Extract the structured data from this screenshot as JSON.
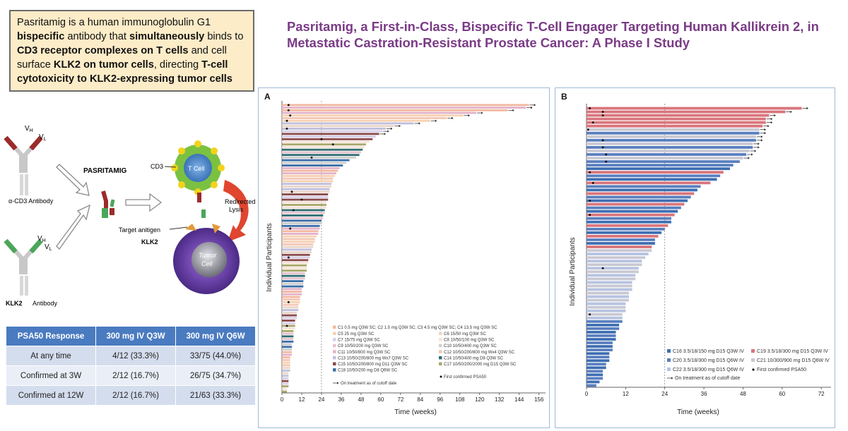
{
  "callout": {
    "t1": "Pasritamig is a human immunoglobulin G1 ",
    "b1": "bispecific",
    "t2": " antibody that ",
    "b2": "simultaneously",
    "t3": " binds to ",
    "b3": "CD3 receptor complexes on T cells",
    "t4": " and cell surface ",
    "b4": "KLK2 on tumor cells",
    "t5": ", directing ",
    "b5": "T-cell cytotoxicity to KLK2-expressing tumor cells"
  },
  "slide_title": "Pasritamig, a First-in-Class, Bispecific T-Cell Engager Targeting Human Kallikrein 2, in Metastatic Castration-Resistant Prostate Cancer: A Phase I Study",
  "diagram": {
    "vh": "V",
    "vh_sub": "H",
    "vl": "V",
    "vl_sub": "L",
    "cd3_antibody": "α-CD3 Antibody",
    "pasritamig": "PASRITAMIG",
    "cd3": "CD3",
    "t_cell": "T Cell",
    "redirected": "Redirected",
    "lysis": "Lysis",
    "target_antigen": "Target anitigen",
    "klk2_center": "KLK2",
    "tumor": "Tumor",
    "cell": "Cell",
    "klk2": "KLK2",
    "antibody": "Antibody"
  },
  "psa_table": {
    "headers": [
      "PSA50 Response",
      "300 mg IV Q3W",
      "300 mg IV Q6W"
    ],
    "rows": [
      [
        "At any time",
        "4/12 (33.3%)",
        "33/75 (44.0%)"
      ],
      [
        "Confirmed at 3W",
        "2/12 (16.7%)",
        "26/75 (34.7%)"
      ],
      [
        "Confirmed at 12W",
        "2/12 (16.7%)",
        "21/63 (33.3%)"
      ]
    ]
  },
  "chart_data": [
    {
      "type": "bar",
      "orientation": "horizontal",
      "panel": "A",
      "xlabel": "Time (weeks)",
      "ylabel": "Individual Participants",
      "xlim": [
        0,
        160
      ],
      "xticks": [
        0,
        12,
        24,
        36,
        48,
        60,
        72,
        84,
        96,
        108,
        120,
        132,
        144,
        156
      ],
      "reference_line_x": 24,
      "legend_position": "bottom-right",
      "series": [
        {
          "name": "C1 0.5 mg Q3W SC; C2 1.5 mg Q3W SC; C3 4.5 mg Q3W SC; C4 13.5 mg Q3W SC",
          "color": "#f2b8a0"
        },
        {
          "name": "C5 25 mg Q3W SC",
          "color": "#f6d2b2"
        },
        {
          "name": "C6 15/50 mg Q3W SC",
          "color": "#ead6c8"
        },
        {
          "name": "C7 15/75 mg Q3W SC",
          "color": "#d8d0e8"
        },
        {
          "name": "C8 10/50/100 mg Q3W SC",
          "color": "#f5e3d8"
        },
        {
          "name": "C9 10/50/200 mg Q3W SC",
          "color": "#e6c3cf"
        },
        {
          "name": "C10 10/50/400 mg Q3W SC",
          "color": "#cfcfcf"
        },
        {
          "name": "C11 10/50/800 mg Q3W SC",
          "color": "#e3b3c9"
        },
        {
          "name": "C12 10/50/200/800 mg Wx4 Q3W SC",
          "color": "#f2c7b5"
        },
        {
          "name": "C13 10/50/200/800 mg Wx7 Q3W SC",
          "color": "#bfbfdf"
        },
        {
          "name": "C14 10/50/400 mg D8 Q3W SC",
          "color": "#2f6f73"
        },
        {
          "name": "C15 10/50/200/800 mg D11 Q3W SC",
          "color": "#8a4a4a"
        },
        {
          "name": "C17 10/50/200/2000 mg D15 Q3W SC",
          "color": "#a9a86a"
        },
        {
          "name": "C18 10/50/200 mg D8 Q6W SC",
          "color": "#3a6fa8"
        }
      ],
      "markers": {
        "first_confirmed_psa50": "First confirmed PSA50",
        "on_treatment": "On treatment as of cutoff date"
      },
      "durations_weeks": [
        150,
        148,
        137,
        118,
        110,
        100,
        90,
        80,
        68,
        63,
        61,
        59,
        57,
        55,
        53,
        51,
        50,
        49,
        48,
        47,
        45,
        41,
        39,
        37,
        35,
        34,
        33,
        32,
        31,
        31,
        30,
        30,
        29,
        29,
        28,
        28,
        28,
        27,
        27,
        27,
        26,
        26,
        25,
        25,
        24,
        24,
        23,
        23,
        22,
        22,
        21,
        20,
        20,
        19,
        19,
        18,
        18,
        17,
        17,
        16,
        16,
        15,
        15,
        15,
        14,
        14,
        14,
        13,
        13,
        13,
        12,
        12,
        12,
        11,
        11,
        11,
        10,
        10,
        10,
        9,
        9,
        9,
        8,
        8,
        8,
        8,
        7,
        7,
        7,
        7,
        7,
        6,
        6,
        6,
        6,
        6,
        5,
        5,
        5,
        5,
        5,
        5,
        4,
        4,
        4,
        4,
        4,
        4,
        3,
        3
      ],
      "first_psa50_weeks": [
        {
          "p": 0,
          "w": 4
        },
        {
          "p": 2,
          "w": 4
        },
        {
          "p": 4,
          "w": 5
        },
        {
          "p": 6,
          "w": 3
        },
        {
          "p": 9,
          "w": 3
        },
        {
          "p": 13,
          "w": 24
        },
        {
          "p": 15,
          "w": 31
        },
        {
          "p": 20,
          "w": 18
        },
        {
          "p": 33,
          "w": 6
        },
        {
          "p": 36,
          "w": 12
        },
        {
          "p": 40,
          "w": 7
        },
        {
          "p": 47,
          "w": 5
        },
        {
          "p": 58,
          "w": 4
        },
        {
          "p": 75,
          "w": 4
        },
        {
          "p": 84,
          "w": 3
        }
      ]
    },
    {
      "type": "bar",
      "orientation": "horizontal",
      "panel": "B",
      "xlabel": "Time (weeks)",
      "ylabel": "Individual Participants",
      "xlim": [
        0,
        75
      ],
      "xticks": [
        0,
        12,
        24,
        36,
        48,
        60,
        72
      ],
      "reference_line_x": 24,
      "legend_position": "bottom-right",
      "series": [
        {
          "name": "C16 3.5/18/150 mg D15 Q3W IV",
          "color": "#3f6fb2"
        },
        {
          "name": "C19 3.5/18/300 mg D15 Q3W IV",
          "color": "#d9757c"
        },
        {
          "name": "C20 3.5/18/300 mg D15 Q6W IV",
          "color": "#5a7fbf"
        },
        {
          "name": "C21 10/300/900 mg D15 Q6W IV",
          "color": "#c9c9d3"
        },
        {
          "name": "C22 3.5/18/300 mg D15 Q6W IV",
          "color": "#b7c3e1"
        }
      ],
      "markers": {
        "first_confirmed_psa50": "First confirmed PSA50",
        "on_treatment": "On treatment as of cutoff date"
      },
      "durations_weeks": [
        66,
        61,
        56,
        55,
        55,
        54,
        53,
        53,
        52,
        52,
        51,
        51,
        50,
        49,
        48,
        47,
        45,
        44,
        42,
        41,
        40,
        38,
        35,
        34,
        33,
        32,
        31,
        30,
        29,
        28,
        27,
        26,
        26,
        25,
        24,
        23,
        22,
        21,
        21,
        20,
        20,
        19,
        18,
        17,
        17,
        16,
        16,
        15,
        15,
        14,
        14,
        14,
        13,
        13,
        13,
        12,
        12,
        12,
        11,
        11,
        11,
        10,
        10,
        9,
        9,
        9,
        8,
        8,
        8,
        7,
        7,
        7,
        6,
        6,
        5,
        5,
        5,
        4,
        3
      ],
      "first_psa50_weeks": [
        {
          "p": 0,
          "w": 1
        },
        {
          "p": 1,
          "w": 5
        },
        {
          "p": 2,
          "w": 5
        },
        {
          "p": 4,
          "w": 2
        },
        {
          "p": 6,
          "w": 0.5
        },
        {
          "p": 9,
          "w": 5
        },
        {
          "p": 11,
          "w": 5
        },
        {
          "p": 13,
          "w": 6
        },
        {
          "p": 15,
          "w": 6
        },
        {
          "p": 18,
          "w": 1
        },
        {
          "p": 21,
          "w": 2
        },
        {
          "p": 26,
          "w": 1
        },
        {
          "p": 30,
          "w": 1
        },
        {
          "p": 45,
          "w": 5
        },
        {
          "p": 58,
          "w": 1
        }
      ]
    }
  ],
  "panel_a_legend": [
    "C1 0.5 mg Q3W SC; C2 1.5 mg Q3W SC; C3 4.5 mg Q3W SC; C4 13.5 mg Q3W SC",
    "C5 25 mg Q3W SC",
    "C6 15/50 mg Q3W SC",
    "C7 15/75 mg Q3W SC",
    "C8 10/50/100 mg Q3W SC",
    "C9 10/50/200 mg Q3W SC",
    "C10 10/50/400 mg Q3W SC",
    "C11 10/50/800 mg Q3W SC",
    "C12 10/50/200/800 mg Wx4 Q3W SC",
    "C13 10/50/200/800 mg Wx7 Q3W SC",
    "C14 10/50/400 mg D8 Q3W SC",
    "C15 10/50/200/800 mg D11 Q3W SC",
    "C17 10/50/200/2000 mg D15 Q3W SC",
    "C18 10/50/200 mg D8 Q6W SC",
    "First confirmed PSA50",
    "On treatment as of cutoff date"
  ],
  "panel_b_legend": [
    "C16 3.5/18/150 mg D15 Q3W IV",
    "C19 3.5/18/300 mg D15 Q3W IV",
    "C20 3.5/18/300 mg D15 Q6W IV",
    "C21 10/300/900 mg D15 Q6W IV",
    "C22 3.5/18/300 mg D15 Q6W IV",
    "First confirmed PSA50",
    "On treatment as of cutoff date"
  ],
  "panel_labels": {
    "a": "A",
    "b": "B"
  }
}
